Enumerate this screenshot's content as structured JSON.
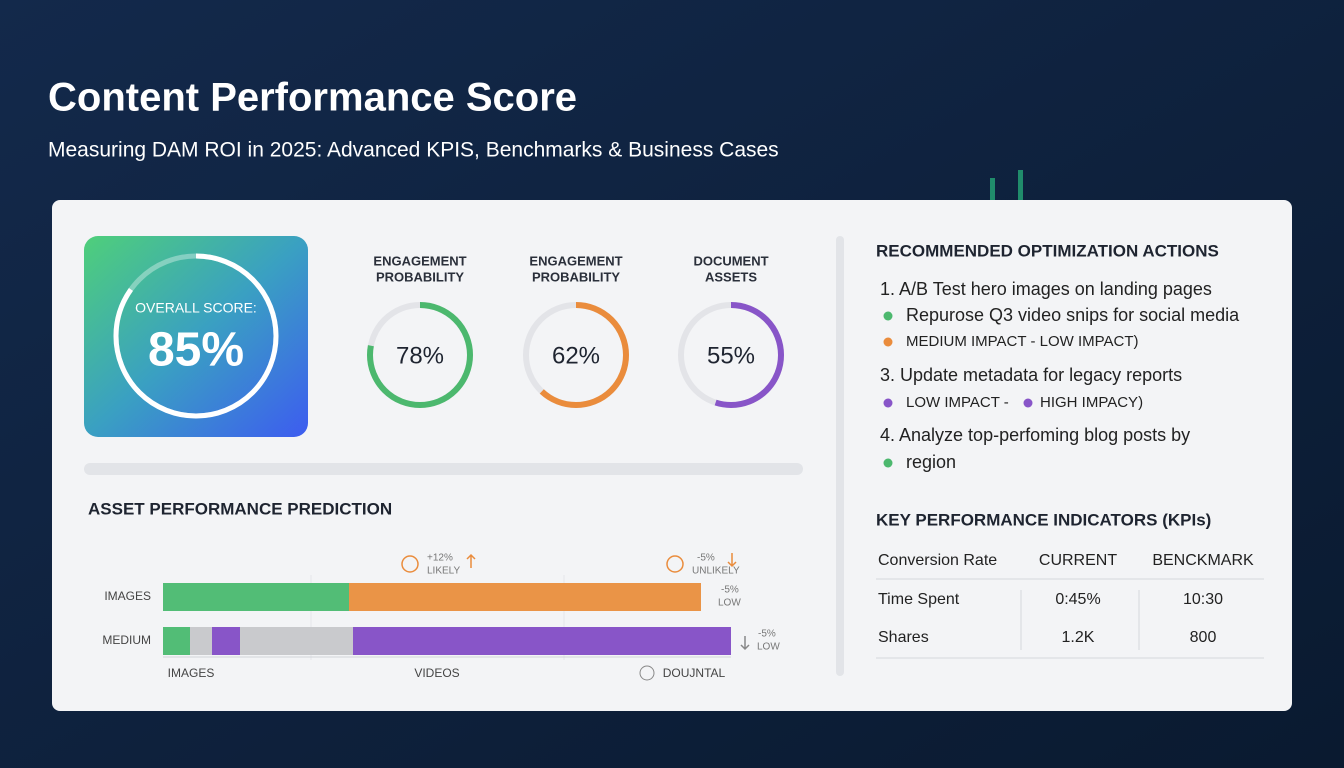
{
  "header": {
    "title": "Content Performance Score",
    "subtitle": "Measuring DAM ROI in 2025: Advanced KPIS, Benchmarks & Business Cases"
  },
  "score": {
    "label": "OVERALL SCORE:",
    "value": 85,
    "value_label": "85%"
  },
  "gauges": [
    {
      "label": [
        "ENGAGEMENT",
        "PROBABILITY"
      ],
      "value": 78,
      "value_label": "78%",
      "color": "#4cb86e"
    },
    {
      "label": [
        "ENGAGEMENT",
        "PROBABILITY"
      ],
      "value": 62,
      "value_label": "62%",
      "color": "#ea8c3c"
    },
    {
      "label": [
        "DOCUMENT",
        "ASSETS"
      ],
      "value": 55,
      "value_label": "55%",
      "color": "#8855c8"
    }
  ],
  "prediction": {
    "title": "ASSET PERFORMANCE PREDICTION",
    "annotations": [
      [
        "+12%",
        "LIKELY"
      ],
      [
        "-5%",
        "UNLIKELY"
      ],
      [
        "-5%",
        "LOW"
      ],
      [
        "-5%",
        "LOW"
      ]
    ],
    "rows": [
      "IMAGES",
      "MEDIUM"
    ],
    "axis_labels": [
      "IMAGES",
      "VIDEOS",
      "DOUJNTAL"
    ]
  },
  "actions": {
    "title": "RECOMMENDED OPTIMIZATION ACTIONS",
    "items": [
      "1.  A/B Test hero images on landing pages",
      "Repurose Q3 video snips for social media",
      "MEDIUM IMPACT - LOW IMPACT)",
      "3.  Update metadata for legacy reports",
      "LOW IMPACT -",
      "HIGH IMPACY)",
      "4.  Analyze top-perfoming blog posts by",
      "region"
    ]
  },
  "kpi": {
    "title": "KEY PERFORMANCE INDICATORS (KPIs)",
    "header": [
      "Conversion Rate",
      "CURRENT",
      "BENCKMARK"
    ],
    "rows": [
      [
        "Time Spent",
        "0:45%",
        "10:30"
      ],
      [
        "Shares",
        "1.2K",
        "800"
      ]
    ]
  }
}
